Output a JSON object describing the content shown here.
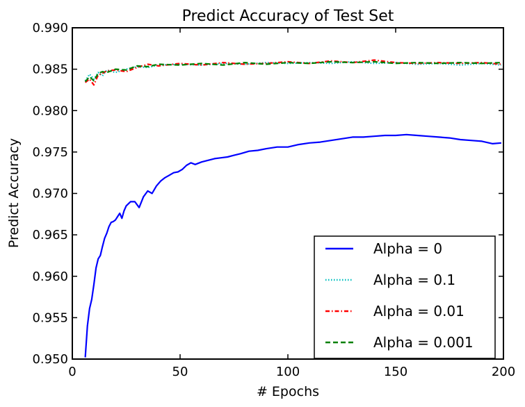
{
  "chart_data": {
    "type": "line",
    "title": "Predict Accuracy of Test Set",
    "xlabel": "# Epochs",
    "ylabel": "Predict Accuracy",
    "xlim": [
      0,
      200
    ],
    "ylim": [
      0.95,
      0.99
    ],
    "xticks": [
      "0",
      "50",
      "100",
      "150",
      "200"
    ],
    "yticks": [
      "0.950",
      "0.955",
      "0.960",
      "0.965",
      "0.970",
      "0.975",
      "0.980",
      "0.985",
      "0.990"
    ],
    "grid": false,
    "legend_position": "lower-right",
    "series": [
      {
        "name": "Alpha = 0",
        "color": "#0000ff",
        "style": "solid",
        "x": [
          6,
          7,
          8,
          9,
          10,
          11,
          12,
          13,
          14,
          15,
          16,
          17,
          18,
          19,
          20,
          21,
          22,
          23,
          24,
          25,
          27,
          29,
          31,
          33,
          35,
          37,
          39,
          41,
          43,
          45,
          47,
          49,
          51,
          53,
          55,
          57,
          60,
          63,
          66,
          69,
          72,
          75,
          78,
          82,
          86,
          90,
          95,
          100,
          105,
          110,
          115,
          120,
          125,
          130,
          135,
          140,
          145,
          150,
          155,
          160,
          165,
          170,
          175,
          180,
          185,
          190,
          195,
          199
        ],
        "y": [
          0.9502,
          0.954,
          0.9561,
          0.9572,
          0.959,
          0.961,
          0.9621,
          0.9625,
          0.9636,
          0.9646,
          0.9652,
          0.966,
          0.9665,
          0.9666,
          0.9668,
          0.9672,
          0.9676,
          0.967,
          0.9679,
          0.9685,
          0.969,
          0.969,
          0.9683,
          0.9696,
          0.9703,
          0.97,
          0.9709,
          0.9715,
          0.9719,
          0.9722,
          0.9725,
          0.9726,
          0.9729,
          0.9734,
          0.9737,
          0.9735,
          0.9738,
          0.974,
          0.9742,
          0.9743,
          0.9744,
          0.9746,
          0.9748,
          0.9751,
          0.9752,
          0.9754,
          0.9756,
          0.9756,
          0.9759,
          0.9761,
          0.9762,
          0.9764,
          0.9766,
          0.9768,
          0.9768,
          0.9769,
          0.977,
          0.977,
          0.9771,
          0.977,
          0.9769,
          0.9768,
          0.9767,
          0.9765,
          0.9764,
          0.9763,
          0.976,
          0.9761
        ]
      },
      {
        "name": "Alpha = 0.1",
        "color": "#00bfbf",
        "style": "dotted",
        "x": [
          6,
          8,
          10,
          12,
          14,
          16,
          20,
          25,
          30,
          35,
          40,
          50,
          60,
          70,
          80,
          90,
          100,
          110,
          120,
          130,
          140,
          150,
          160,
          170,
          180,
          190,
          199
        ],
        "y": [
          0.9836,
          0.9844,
          0.9838,
          0.9846,
          0.9842,
          0.9849,
          0.9846,
          0.985,
          0.9853,
          0.9852,
          0.9855,
          0.9856,
          0.9855,
          0.9857,
          0.9856,
          0.9858,
          0.9857,
          0.9858,
          0.9857,
          0.9859,
          0.9857,
          0.9858,
          0.9856,
          0.9857,
          0.9855,
          0.9857,
          0.9855
        ]
      },
      {
        "name": "Alpha = 0.01",
        "color": "#ff0000",
        "style": "dashdot",
        "x": [
          6,
          8,
          10,
          12,
          14,
          16,
          20,
          25,
          30,
          35,
          40,
          50,
          60,
          70,
          80,
          90,
          100,
          110,
          120,
          130,
          140,
          150,
          160,
          170,
          180,
          190,
          199
        ],
        "y": [
          0.9834,
          0.9838,
          0.9831,
          0.9843,
          0.9845,
          0.9848,
          0.9849,
          0.9847,
          0.9852,
          0.9856,
          0.9854,
          0.9857,
          0.9855,
          0.9858,
          0.9856,
          0.9857,
          0.9859,
          0.9857,
          0.986,
          0.9858,
          0.9861,
          0.9858,
          0.9857,
          0.9858,
          0.9857,
          0.9858,
          0.9856
        ]
      },
      {
        "name": "Alpha = 0.001",
        "color": "#008000",
        "style": "dashed",
        "x": [
          6,
          8,
          10,
          12,
          14,
          16,
          20,
          25,
          30,
          35,
          40,
          50,
          60,
          70,
          80,
          90,
          100,
          110,
          120,
          130,
          140,
          150,
          160,
          170,
          180,
          190,
          199
        ],
        "y": [
          0.9835,
          0.9841,
          0.9836,
          0.9845,
          0.9847,
          0.9846,
          0.985,
          0.9849,
          0.9854,
          0.9853,
          0.9856,
          0.9855,
          0.9857,
          0.9855,
          0.9858,
          0.9856,
          0.9858,
          0.9857,
          0.9859,
          0.9858,
          0.9859,
          0.9857,
          0.9858,
          0.9857,
          0.9858,
          0.9857,
          0.9858
        ]
      }
    ]
  }
}
